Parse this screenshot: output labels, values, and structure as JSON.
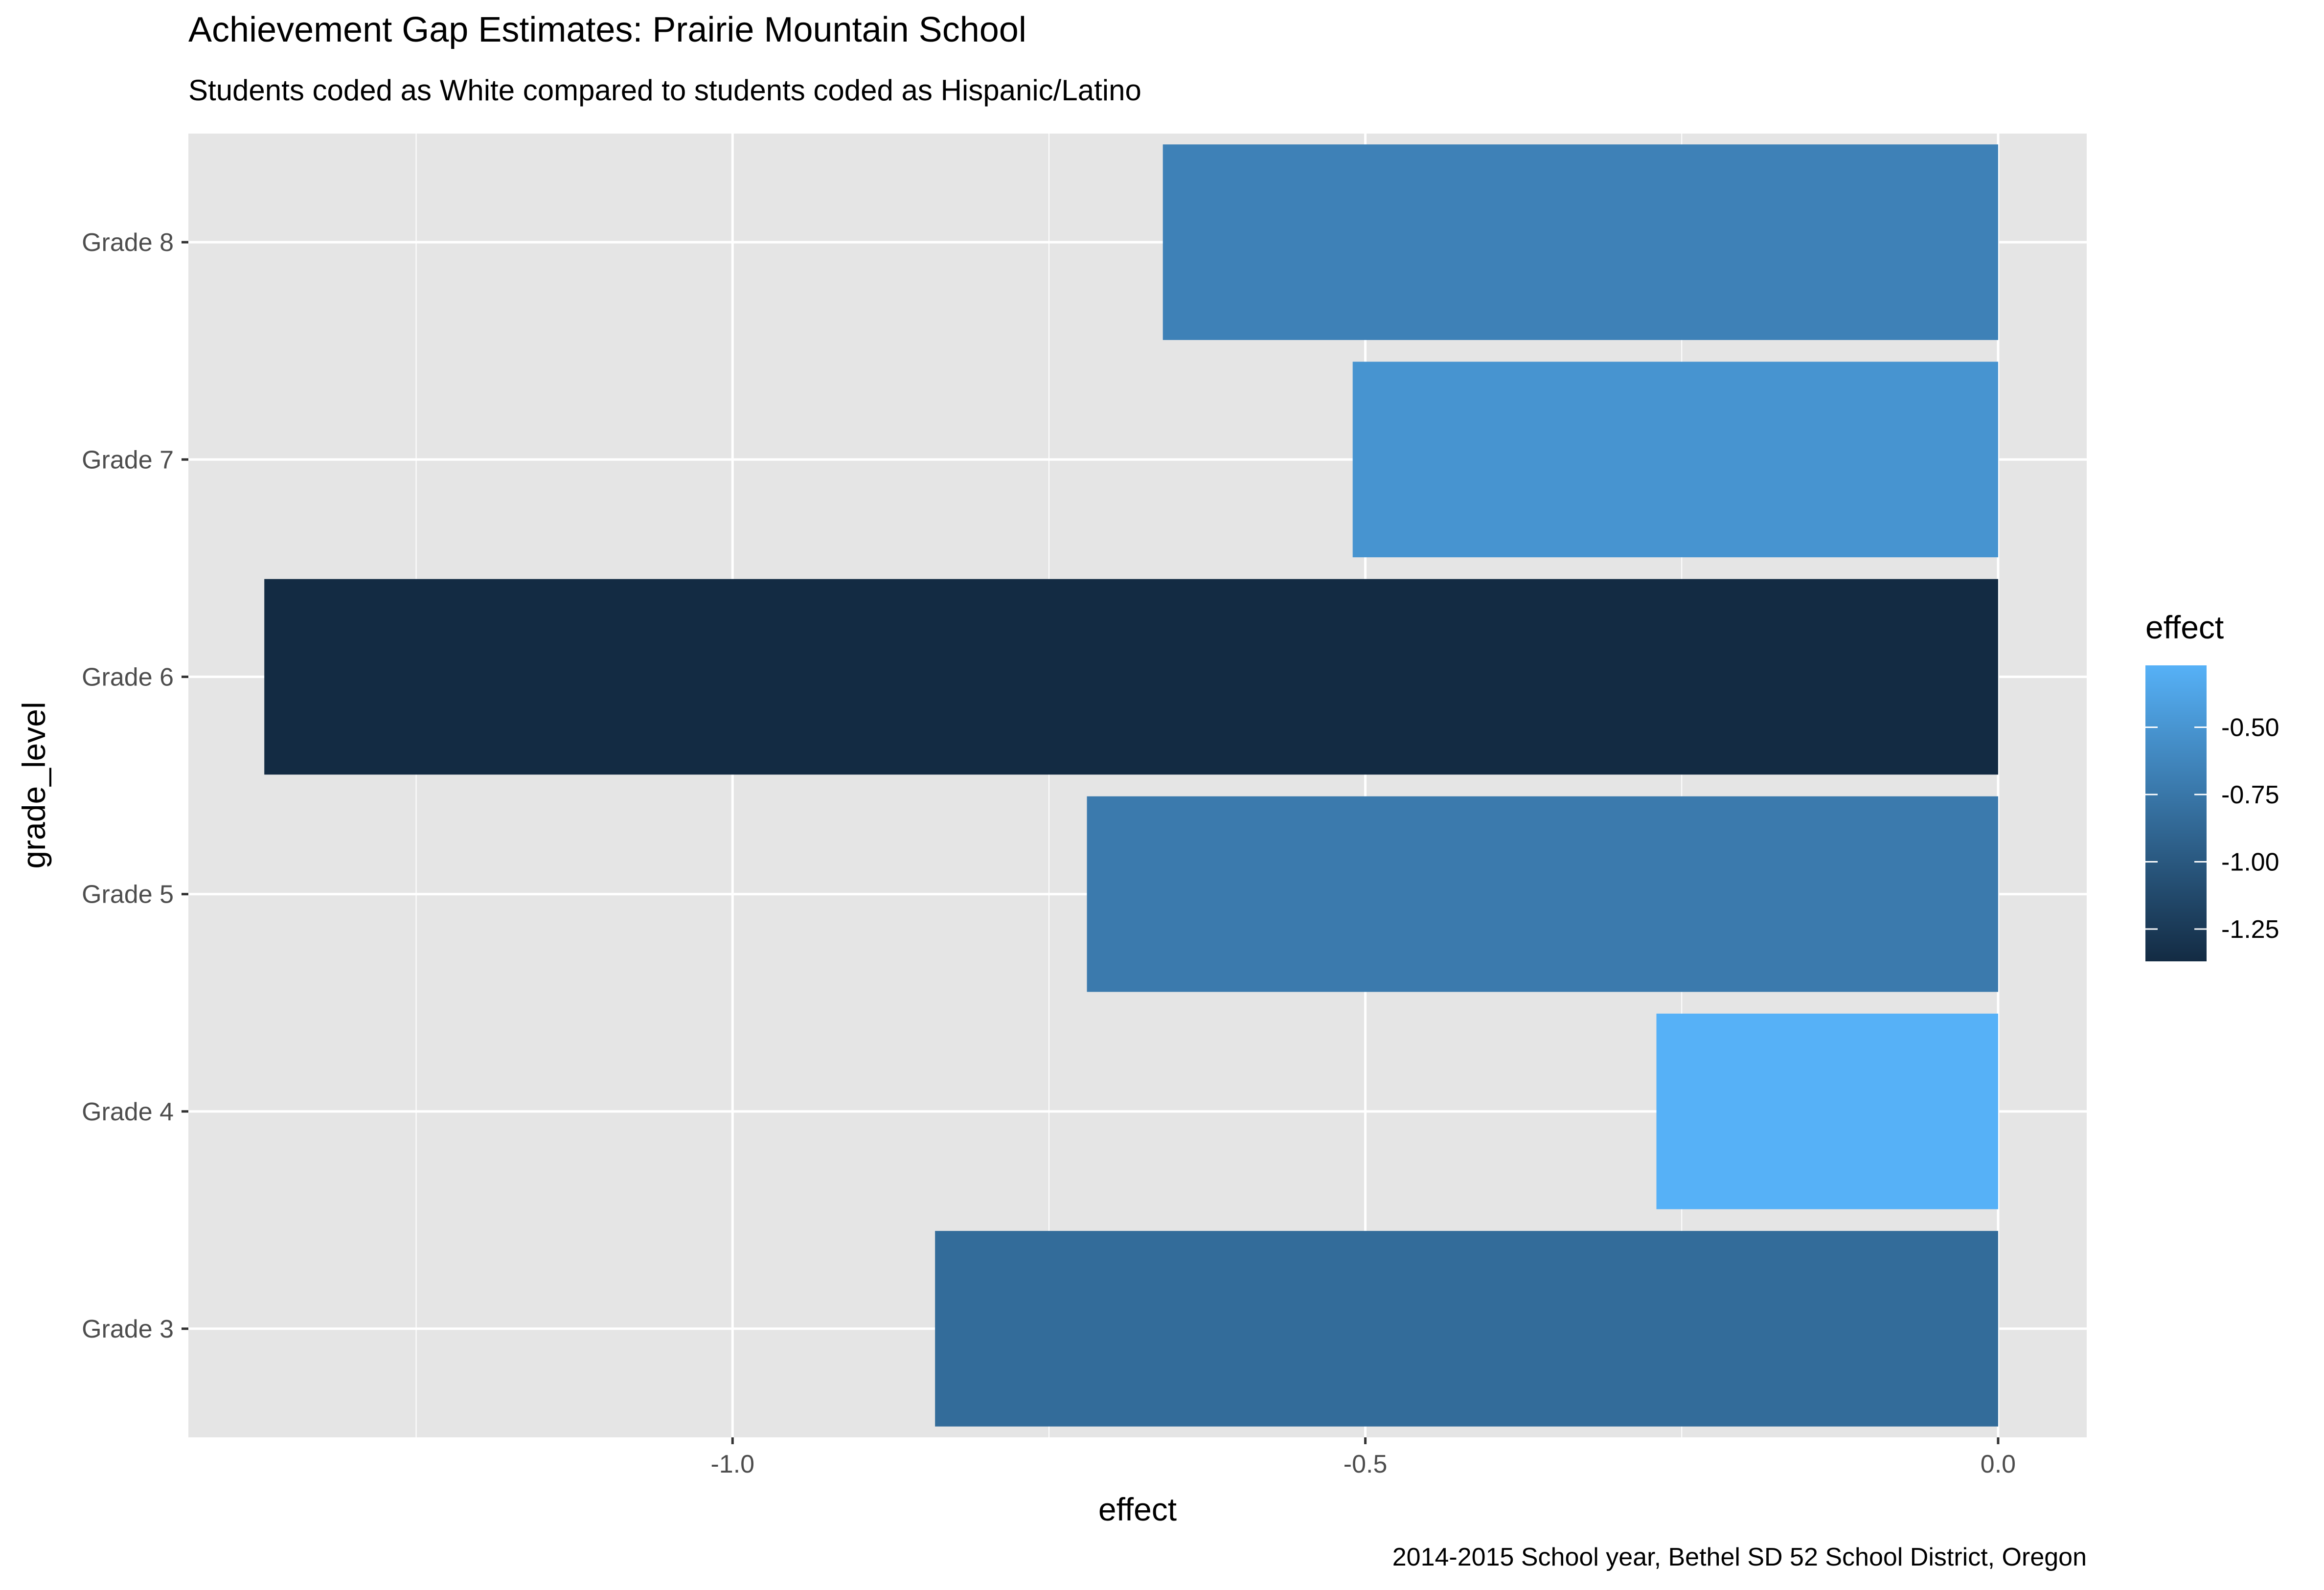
{
  "chart_data": {
    "type": "bar",
    "orientation": "horizontal",
    "title": "Achievement Gap Estimates: Prairie Mountain School",
    "subtitle": "Students coded as White compared to students coded as Hispanic/Latino",
    "caption": "2014-2015 School year, Bethel SD 52 School District, Oregon",
    "xlabel": "effect",
    "ylabel": "grade_level",
    "categories": [
      "Grade 3",
      "Grade 4",
      "Grade 5",
      "Grade 6",
      "Grade 7",
      "Grade 8"
    ],
    "values": [
      -0.84,
      -0.27,
      -0.72,
      -1.37,
      -0.51,
      -0.66
    ],
    "xlim": [
      -1.43,
      0.07
    ],
    "x_ticks": [
      -1.0,
      -0.5,
      0.0
    ],
    "x_tick_labels": [
      "-1.0",
      "-0.5",
      "0.0"
    ],
    "grid": true,
    "legend": {
      "title": "effect",
      "position": "right",
      "type": "colorbar",
      "range": [
        -1.37,
        -0.27
      ],
      "ticks": [
        -0.5,
        -0.75,
        -1.0,
        -1.25
      ],
      "tick_labels": [
        "-0.50",
        "-0.75",
        "-1.00",
        "-1.25"
      ],
      "low_color": "#132B43",
      "high_color": "#56B1F7"
    },
    "colors": {
      "panel_background": "#e5e5e5",
      "grid": "#ffffff",
      "tick_text": "#4d4d4d"
    }
  }
}
